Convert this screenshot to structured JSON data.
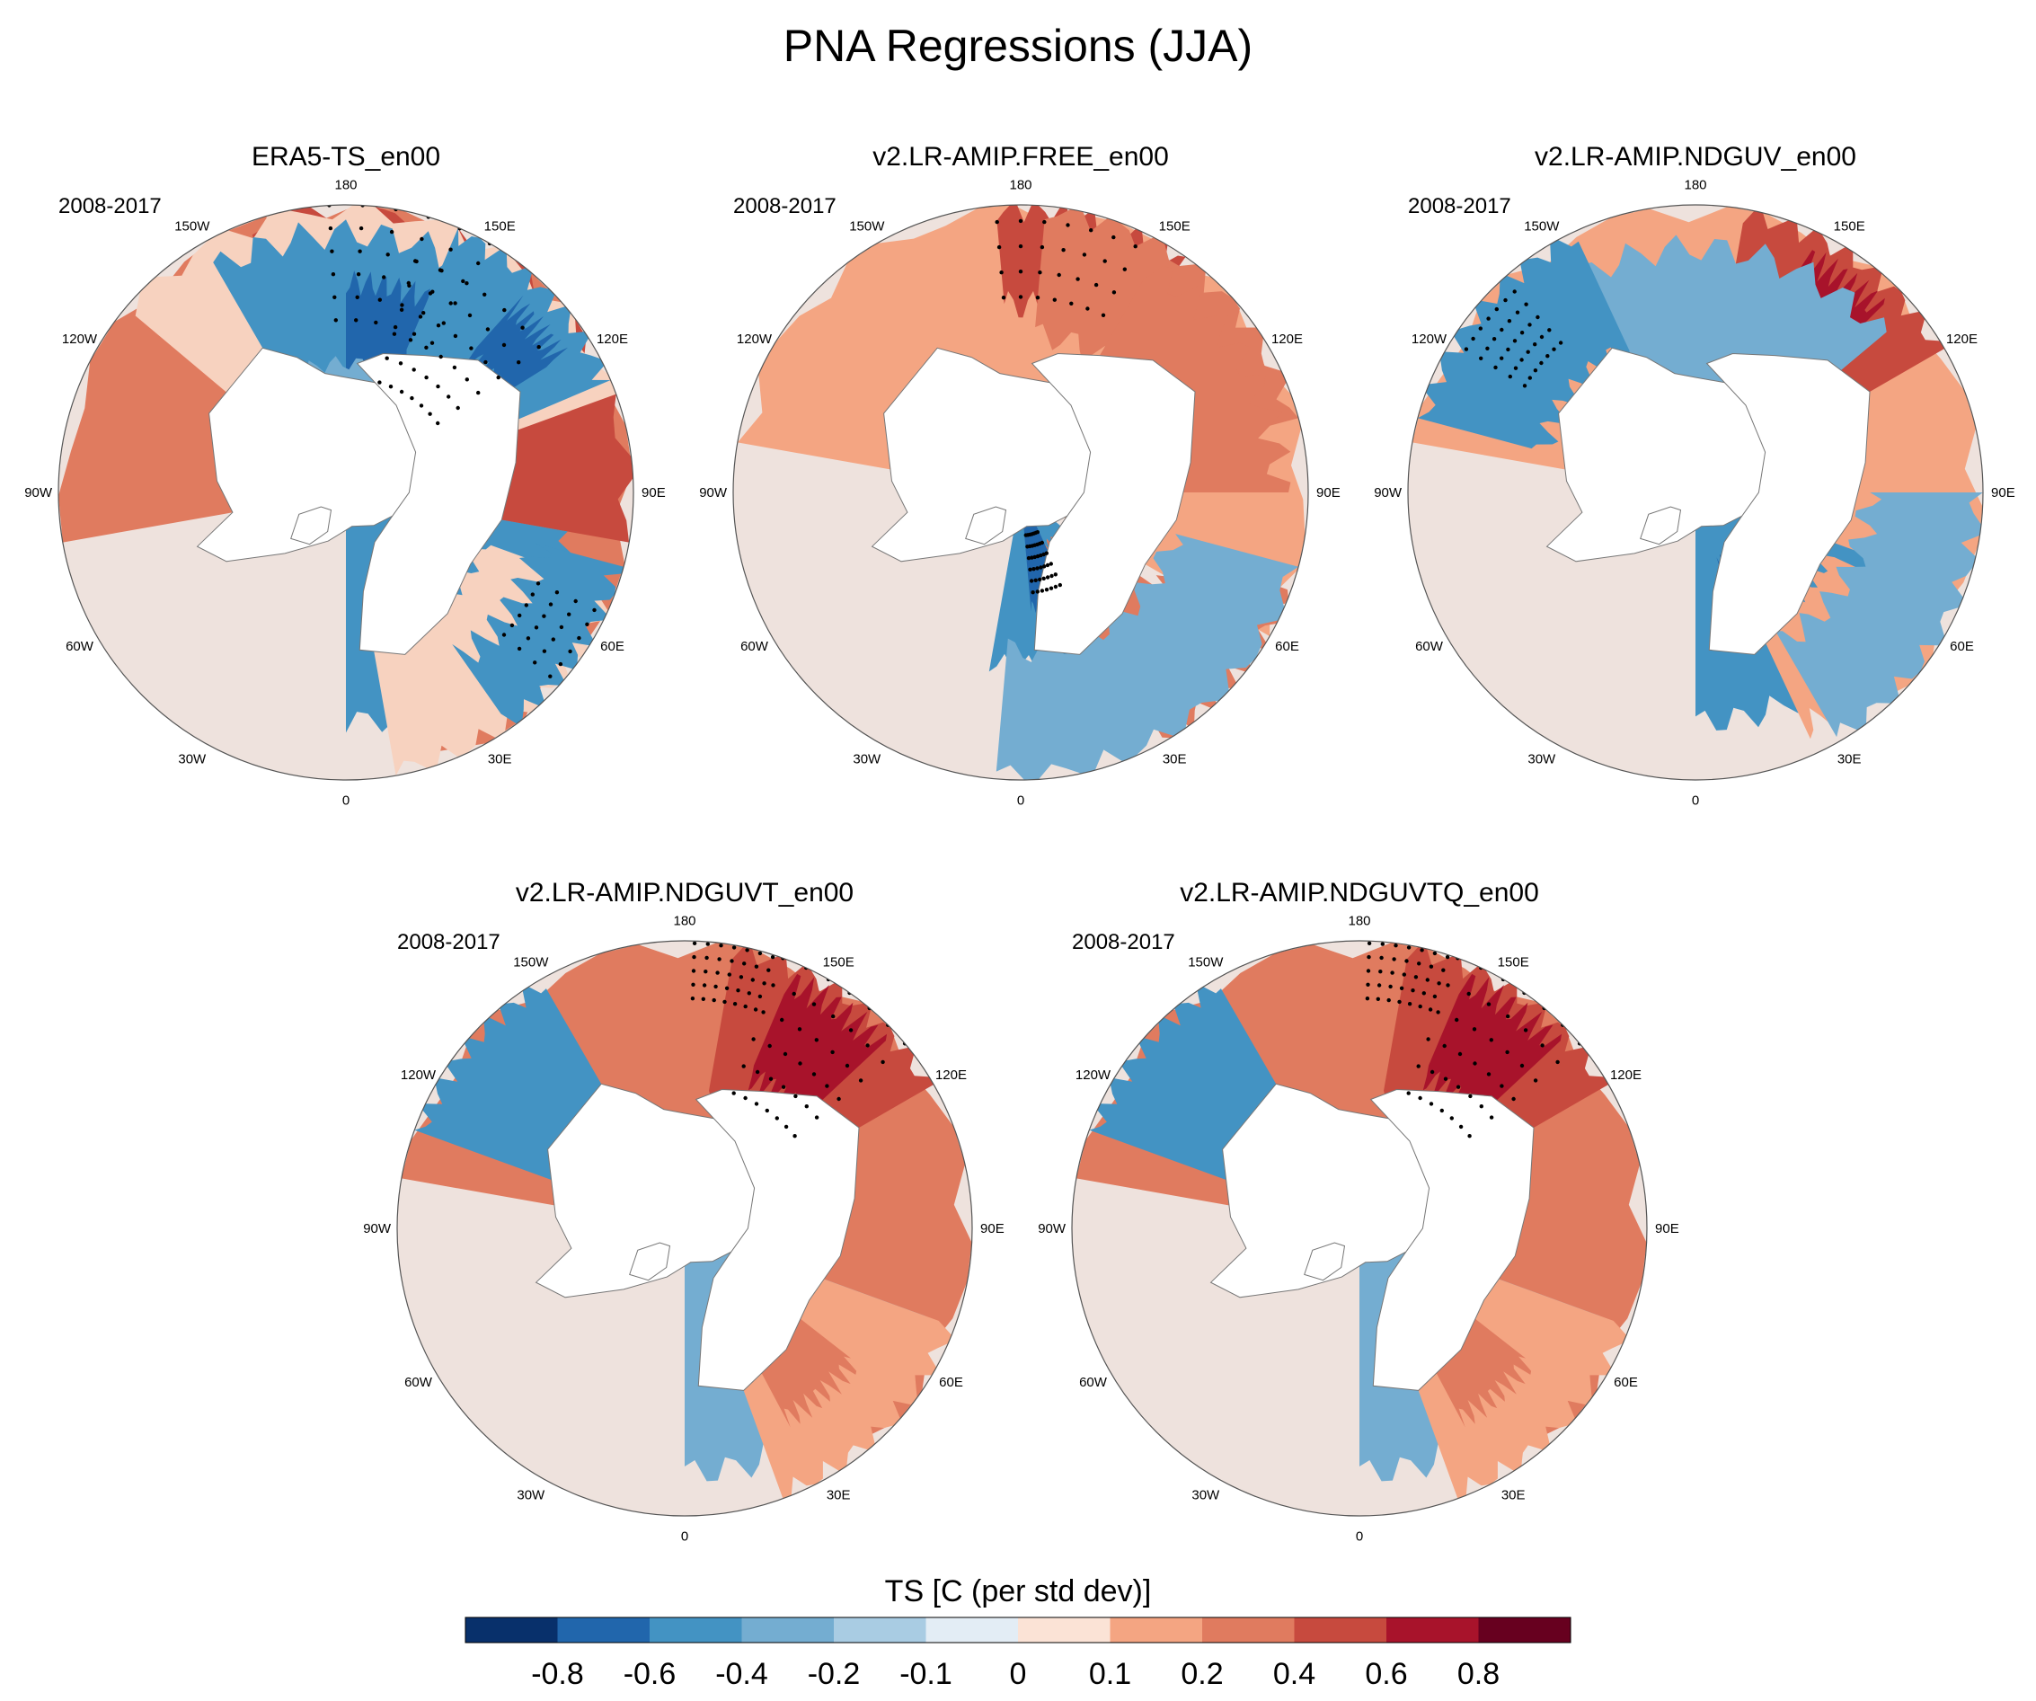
{
  "title": "PNA Regressions (JJA)",
  "period": "2008-2017",
  "longitude_labels": [
    "180",
    "150E",
    "120E",
    "90E",
    "60E",
    "30E",
    "0",
    "30W",
    "60W",
    "90W",
    "120W",
    "150W"
  ],
  "panels": [
    {
      "title": "ERA5-TS_en00"
    },
    {
      "title": "v2.LR-AMIP.FREE_en00"
    },
    {
      "title": "v2.LR-AMIP.NDGUV_en00"
    },
    {
      "title": "v2.LR-AMIP.NDGUVT_en00"
    },
    {
      "title": "v2.LR-AMIP.NDGUVTQ_en00"
    }
  ],
  "colorbar": {
    "title": "TS [C (per std dev)]",
    "labels": [
      "-0.8",
      "-0.6",
      "-0.4",
      "-0.2",
      "-0.1",
      "0",
      "0.1",
      "0.2",
      "0.4",
      "0.6",
      "0.8"
    ],
    "colors": [
      "#08306b",
      "#2166ac",
      "#4393c3",
      "#74add1",
      "#a9cce3",
      "#e3edf5",
      "#fbe3d6",
      "#f4a582",
      "#e07b5f",
      "#c74a3e",
      "#a8132b",
      "#67001f"
    ]
  },
  "map_data": {
    "colors": {
      "land_outline": "#777777",
      "neg_strong": "#2166ac",
      "neg": "#4393c3",
      "neg_mid": "#74add1",
      "neg_weak": "#bcd6ea",
      "neutral": "#e8eff6",
      "pos_weak": "#f7d2bf",
      "pos": "#f4a582",
      "pos_mid": "#e07b5f",
      "pos_strong": "#c74a3e",
      "pos_max": "#a8132b"
    },
    "panels": [
      {
        "blobs": [
          [
            "pos_mid",
            150,
            0.7,
            130,
            0.75
          ],
          [
            "pos_strong",
            140,
            0.62,
            60,
            0.7
          ],
          [
            "pos_max",
            145,
            0.62,
            22,
            0.25
          ],
          [
            "pos_weak",
            170,
            0.85,
            60,
            0.6
          ],
          [
            "neg",
            175,
            0.55,
            35,
            0.35
          ],
          [
            "neg_strong",
            165,
            0.55,
            15,
            0.18
          ],
          [
            "neg",
            135,
            0.75,
            22,
            0.25
          ],
          [
            "neg_strong",
            130,
            0.75,
            8,
            0.12
          ],
          [
            "neg_mid",
            170,
            0.15,
            40,
            0.3
          ],
          [
            "neg",
            40,
            0.45,
            40,
            0.35
          ],
          [
            "pos_weak",
            40,
            0.8,
            30,
            0.3
          ],
          [
            "neg",
            55,
            0.95,
            20,
            0.25
          ]
        ],
        "stipple": [
          [
            145,
            0.62,
            18,
            0.22
          ],
          [
            170,
            0.8,
            20,
            0.2
          ],
          [
            58,
            0.92,
            10,
            0.18
          ]
        ]
      },
      {
        "blobs": [
          [
            "pos",
            160,
            0.65,
            100,
            0.8
          ],
          [
            "pos_strong",
            165,
            0.9,
            20,
            0.25
          ],
          [
            "pos_mid",
            140,
            0.85,
            35,
            0.3
          ],
          [
            "pos_mid",
            120,
            0.55,
            30,
            0.35
          ],
          [
            "neg",
            20,
            0.3,
            30,
            0.3
          ],
          [
            "neg_strong",
            15,
            0.25,
            10,
            0.15
          ],
          [
            "pos_mid",
            40,
            0.45,
            15,
            0.25
          ],
          [
            "pos_mid",
            50,
            0.85,
            20,
            0.25
          ],
          [
            "neg_mid",
            35,
            0.9,
            40,
            0.35
          ],
          [
            "pos_strong",
            80,
            0.25,
            12,
            0.2
          ]
        ],
        "stipple": [
          [
            170,
            0.9,
            15,
            0.22
          ],
          [
            15,
            0.25,
            8,
            0.1
          ]
        ]
      },
      {
        "blobs": [
          [
            "pos",
            150,
            0.75,
            110,
            0.7
          ],
          [
            "pos_strong",
            145,
            0.75,
            25,
            0.3
          ],
          [
            "pos_max",
            145,
            0.75,
            10,
            0.15
          ],
          [
            "neg_mid",
            170,
            0.5,
            40,
            0.35
          ],
          [
            "neg",
            230,
            0.8,
            25,
            0.25
          ],
          [
            "neg",
            35,
            0.45,
            35,
            0.35
          ],
          [
            "neg_strong",
            30,
            0.4,
            12,
            0.15
          ],
          [
            "pos",
            45,
            0.7,
            20,
            0.2
          ],
          [
            "neg_mid",
            60,
            0.9,
            30,
            0.3
          ]
        ],
        "stipple": [
          [
            230,
            0.85,
            8,
            0.15
          ]
        ]
      },
      {
        "blobs": [
          [
            "pos_mid",
            150,
            0.7,
            110,
            0.7
          ],
          [
            "pos_strong",
            145,
            0.75,
            25,
            0.3
          ],
          [
            "pos_max",
            145,
            0.75,
            12,
            0.18
          ],
          [
            "neg",
            230,
            0.75,
            20,
            0.35
          ],
          [
            "neg_mid",
            35,
            0.45,
            35,
            0.4
          ],
          [
            "pos",
            45,
            0.75,
            25,
            0.3
          ],
          [
            "pos_mid",
            40,
            0.55,
            12,
            0.2
          ]
        ],
        "stipple": [
          [
            145,
            0.75,
            15,
            0.25
          ],
          [
            170,
            0.92,
            8,
            0.12
          ]
        ]
      },
      {
        "blobs": [
          [
            "pos_mid",
            150,
            0.7,
            110,
            0.7
          ],
          [
            "pos_strong",
            145,
            0.75,
            25,
            0.3
          ],
          [
            "pos_max",
            145,
            0.75,
            12,
            0.18
          ],
          [
            "neg",
            230,
            0.75,
            20,
            0.35
          ],
          [
            "neg_mid",
            35,
            0.45,
            35,
            0.4
          ],
          [
            "pos",
            45,
            0.75,
            25,
            0.3
          ],
          [
            "pos_mid",
            40,
            0.55,
            12,
            0.2
          ]
        ],
        "stipple": [
          [
            145,
            0.75,
            15,
            0.25
          ],
          [
            170,
            0.92,
            8,
            0.12
          ]
        ]
      }
    ]
  }
}
